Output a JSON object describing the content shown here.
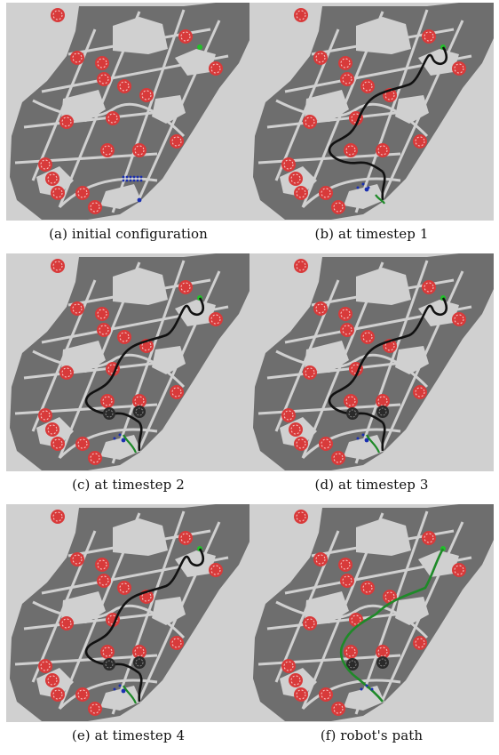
{
  "figure": {
    "panels": [
      {
        "id": "a",
        "caption": "(a) initial configuration",
        "timestep": 0
      },
      {
        "id": "b",
        "caption": "(b) at timestep 1",
        "timestep": 1
      },
      {
        "id": "c",
        "caption": "(c) at timestep 2",
        "timestep": 2
      },
      {
        "id": "d",
        "caption": "(d) at timestep 3",
        "timestep": 3
      },
      {
        "id": "e",
        "caption": "(e) at timestep 4",
        "timestep": 4
      },
      {
        "id": "f",
        "caption": "(f) robot's path",
        "timestep": 5
      }
    ]
  },
  "colors": {
    "background": "#d0d0d0",
    "obstacle": "#6e6e6e",
    "hazard": "#d83a3a",
    "robot_goal": "#22c02a",
    "robot": "#1a2fb0",
    "planned_path": "#111111",
    "traversed_path": "#1e8a28",
    "discovered_obstacle": "#2a2a2a"
  },
  "icons": {
    "hazard": "red-hazard-disc-icon",
    "goal": "green-goal-dot-icon",
    "robot": "blue-robot-dot-icon"
  }
}
